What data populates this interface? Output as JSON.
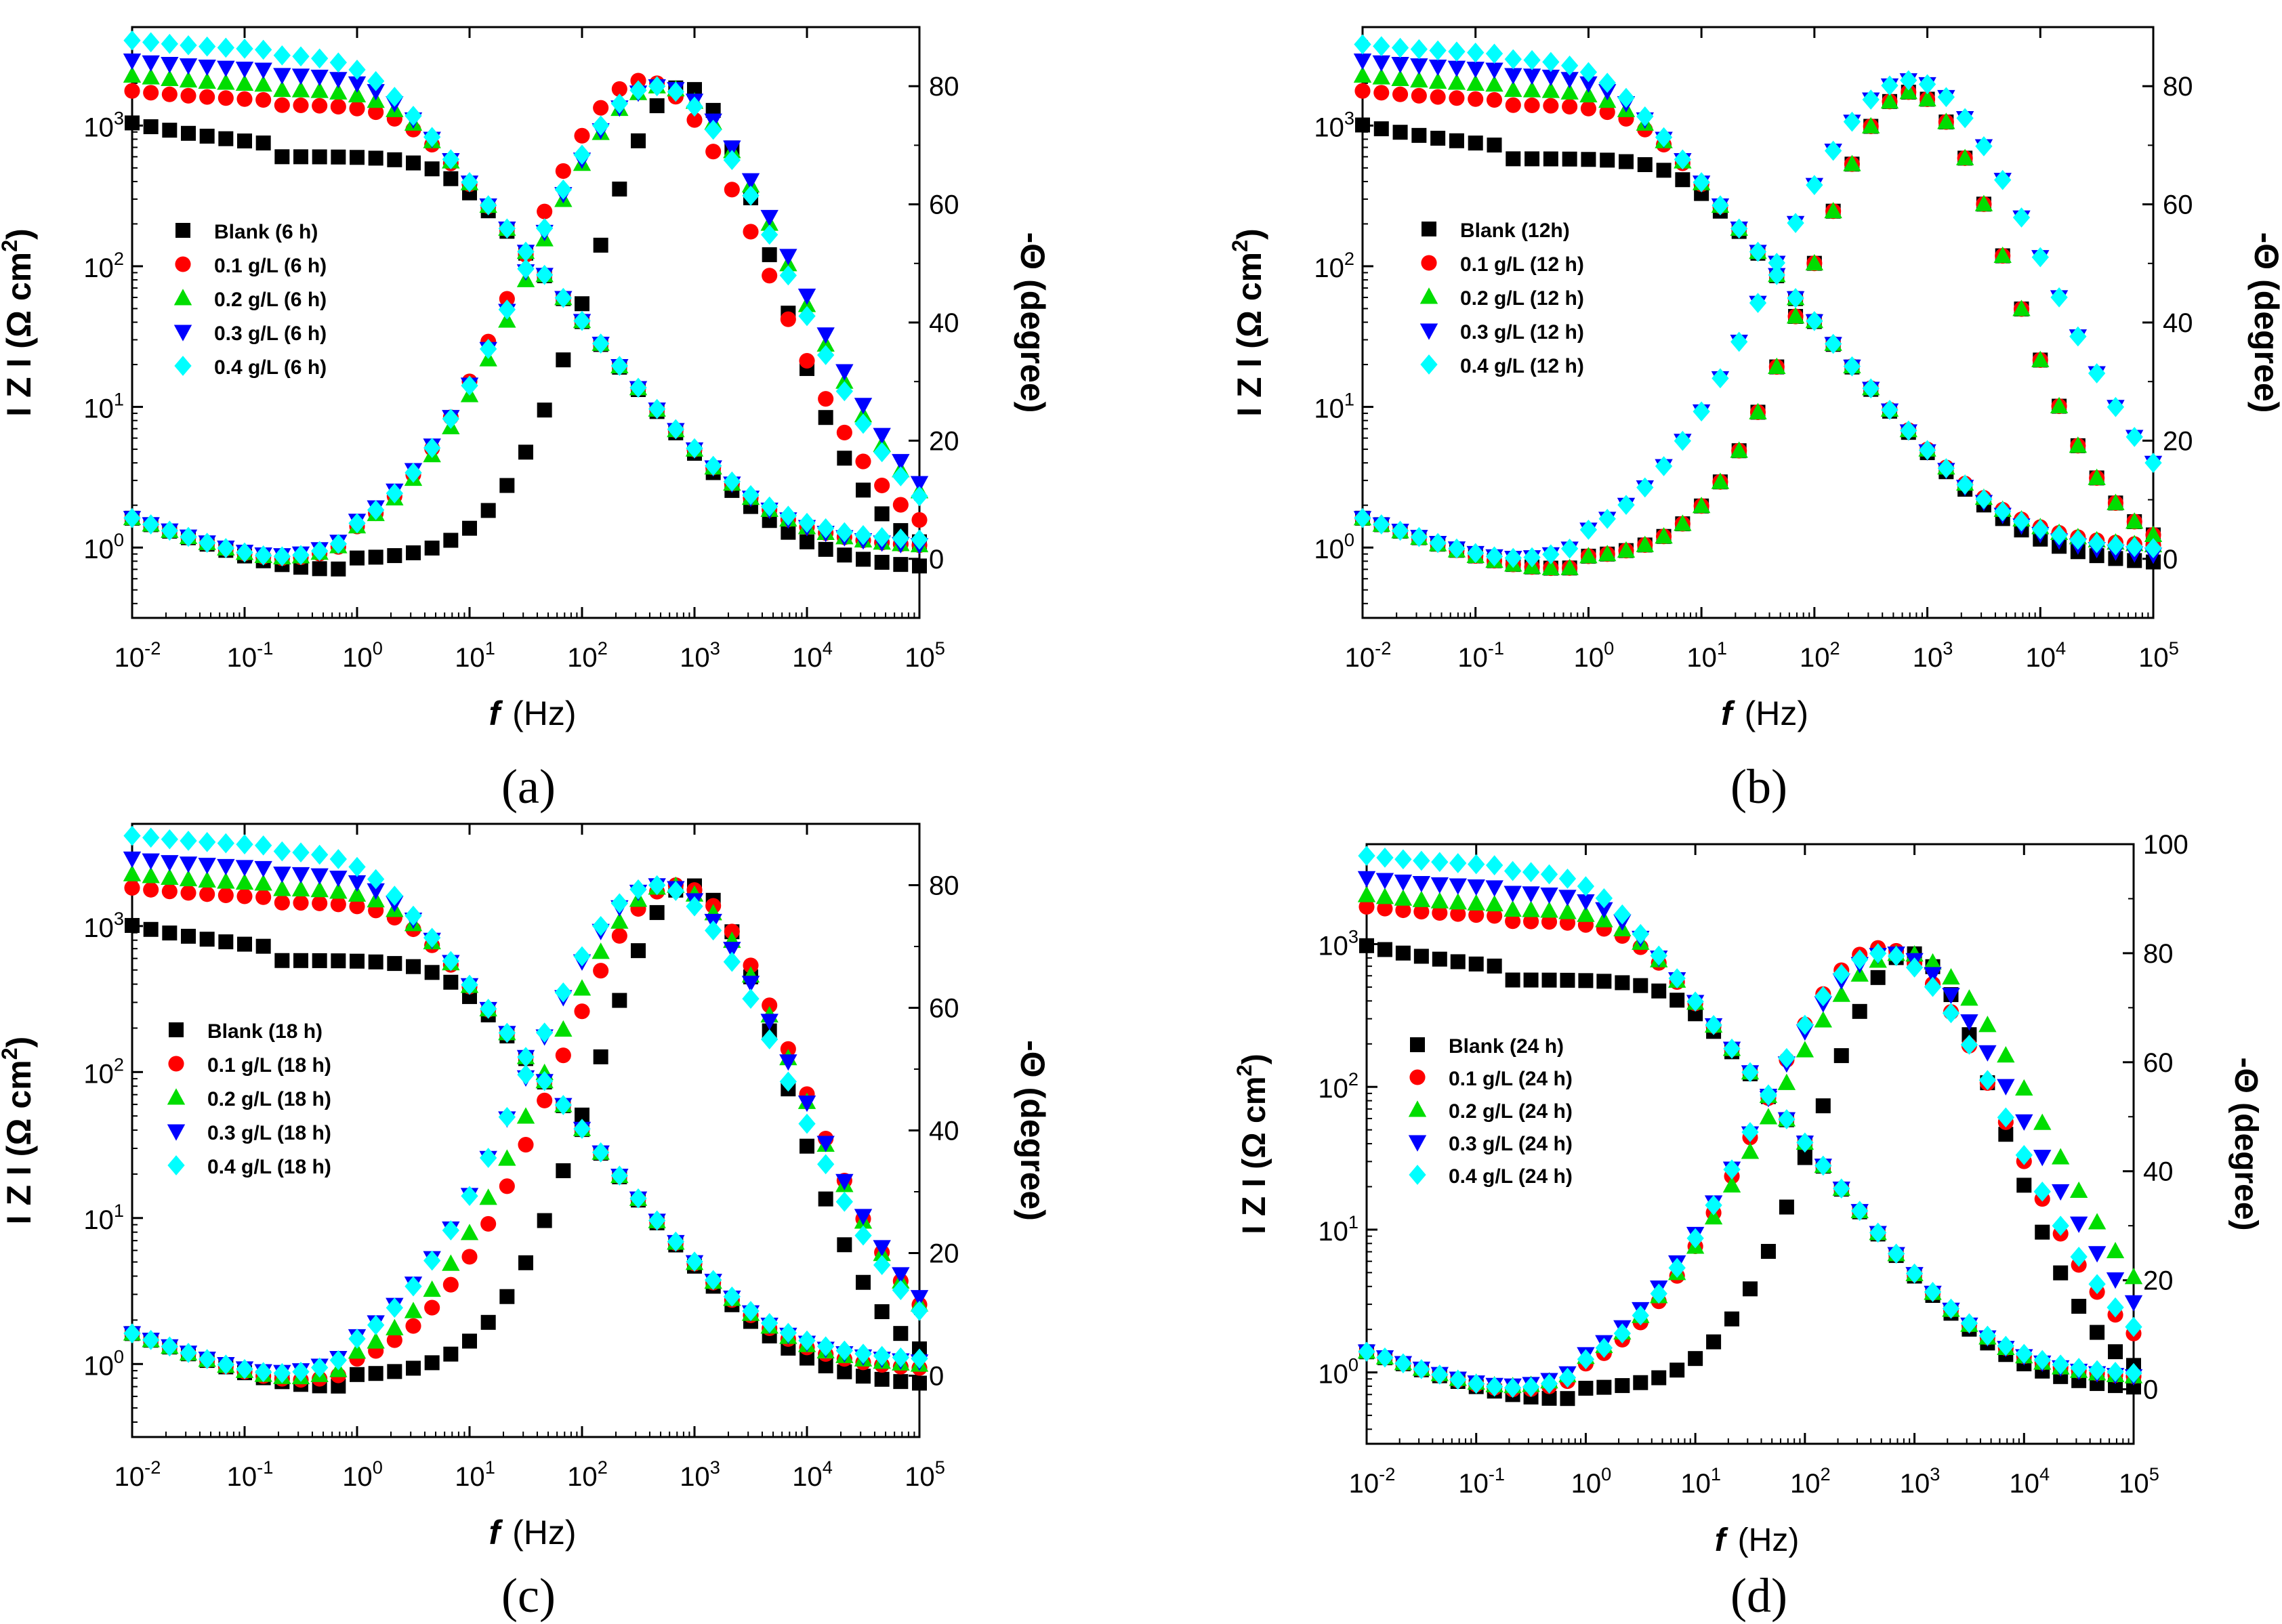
{
  "figure": {
    "x_axis_label_prefix": "f",
    "x_axis_label_unit": "(Hz)",
    "y_left_label_main": "I Z I (Ω cm",
    "y_left_label_sup": "2",
    "y_left_label_close": ")",
    "y_right_label": "-Θ (degree)"
  },
  "chart_data": [
    {
      "panel": "(a)",
      "type": "scatter",
      "xscale": "log",
      "xlim": [
        0.01,
        100000
      ],
      "x_ticks": [
        "10-2",
        "10-1",
        "100",
        "101",
        "102",
        "103",
        "104",
        "105"
      ],
      "xlabel": "f (Hz)",
      "ylabel_left": "I Z I (Ω cm2)",
      "ylim_left_log10": [
        -0.5,
        3.7
      ],
      "y_left_ticks": [
        "100",
        "101",
        "102",
        "103"
      ],
      "ylabel_right": "-Θ (degree)",
      "ylim_right": [
        -10,
        90
      ],
      "y_right_ticks": [
        "0",
        "20",
        "40",
        "60",
        "80"
      ],
      "legend": [
        "Blank   (6 h)",
        "0.1 g/L (6 h)",
        "0.2 g/L (6 h)",
        "0.3 g/L (6 h)",
        "0.4 g/L (6 h)"
      ],
      "series": [
        {
          "name": "Blank (6 h)",
          "Z_low": 600,
          "Z_high": 0.7,
          "ph_max": 80,
          "ph_fmax": 800,
          "ph_width": 1.15
        },
        {
          "name": "0.1 g/L (6 h)",
          "Z_low": 1400,
          "Z_high": 1.0,
          "ph_max": 81,
          "ph_fmax": 350,
          "ph_width": 1.55
        },
        {
          "name": "0.2 g/L (6 h)",
          "Z_low": 1800,
          "Z_high": 1.0,
          "ph_max": 80,
          "ph_fmax": 500,
          "ph_width": 1.65
        },
        {
          "name": "0.3 g/L (6 h)",
          "Z_low": 2300,
          "Z_high": 1.0,
          "ph_max": 80,
          "ph_fmax": 500,
          "ph_width": 1.7
        },
        {
          "name": "0.4 g/L (6 h)",
          "Z_low": 3200,
          "Z_high": 1.1,
          "ph_max": 80,
          "ph_fmax": 450,
          "ph_width": 1.65
        }
      ]
    },
    {
      "panel": "(b)",
      "type": "scatter",
      "xscale": "log",
      "xlim": [
        0.01,
        100000
      ],
      "x_ticks": [
        "10-2",
        "10-1",
        "100",
        "101",
        "102",
        "103",
        "104",
        "105"
      ],
      "xlabel": "f (Hz)",
      "ylabel_left": "I Z I (Ω cm2)",
      "ylim_left_log10": [
        -0.5,
        3.7
      ],
      "y_left_ticks": [
        "100",
        "101",
        "102",
        "103"
      ],
      "ylabel_right": "-Θ (degree)",
      "ylim_right": [
        -10,
        90
      ],
      "y_right_ticks": [
        "0",
        "20",
        "40",
        "60",
        "80"
      ],
      "legend": [
        "Blank   (12h)",
        "0.1 g/L (12 h)",
        "0.2 g/L (12 h)",
        "0.3 g/L (12 h)",
        "0.4 g/L (12 h)"
      ],
      "series": [
        {
          "name": "Blank (12h)",
          "Z_low": 580,
          "Z_high": 0.75,
          "ph_max": 79,
          "ph_fmax": 700,
          "ph_width": 1.25
        },
        {
          "name": "0.1 g/L (12 h)",
          "Z_low": 1400,
          "Z_high": 1.0,
          "ph_max": 79,
          "ph_fmax": 700,
          "ph_width": 1.25
        },
        {
          "name": "0.2 g/L (12 h)",
          "Z_low": 1800,
          "Z_high": 1.0,
          "ph_max": 79,
          "ph_fmax": 700,
          "ph_width": 1.25
        },
        {
          "name": "0.3 g/L (12 h)",
          "Z_low": 2300,
          "Z_high": 0.85,
          "ph_max": 81,
          "ph_fmax": 700,
          "ph_width": 1.7
        },
        {
          "name": "0.4 g/L (12 h)",
          "Z_low": 3000,
          "Z_high": 0.95,
          "ph_max": 81,
          "ph_fmax": 700,
          "ph_width": 1.7
        }
      ]
    },
    {
      "panel": "(c)",
      "type": "scatter",
      "xscale": "log",
      "xlim": [
        0.01,
        100000
      ],
      "x_ticks": [
        "10-2",
        "10-1",
        "100",
        "101",
        "102",
        "103",
        "104",
        "105"
      ],
      "xlabel": "f (Hz)",
      "ylabel_left": "I Z I (Ω cm2)",
      "ylim_left_log10": [
        -0.5,
        3.7
      ],
      "y_left_ticks": [
        "100",
        "101",
        "102",
        "103"
      ],
      "ylabel_right": "-Θ (degree)",
      "ylim_right": [
        -10,
        90
      ],
      "y_right_ticks": [
        "0",
        "20",
        "40",
        "60",
        "80"
      ],
      "legend": [
        "Blank    (18 h)",
        "0.1 g/L (18 h)",
        "0.2 g/L (18 h)",
        "0.3 g/L (18 h)",
        "0.4 g/L (18 h)"
      ],
      "series": [
        {
          "name": "Blank (18 h)",
          "Z_low": 580,
          "Z_high": 0.7,
          "ph_max": 80,
          "ph_fmax": 900,
          "ph_width": 1.2
        },
        {
          "name": "0.1 g/L (18 h)",
          "Z_low": 1450,
          "Z_high": 0.9,
          "ph_max": 80,
          "ph_fmax": 700,
          "ph_width": 1.55
        },
        {
          "name": "0.2 g/L (18 h)",
          "Z_low": 1800,
          "Z_high": 0.95,
          "ph_max": 80,
          "ph_fmax": 600,
          "ph_width": 1.6
        },
        {
          "name": "0.3 g/L (18 h)",
          "Z_low": 2300,
          "Z_high": 1.0,
          "ph_max": 80,
          "ph_fmax": 500,
          "ph_width": 1.7
        },
        {
          "name": "0.4 g/L (18 h)",
          "Z_low": 3300,
          "Z_high": 1.05,
          "ph_max": 80,
          "ph_fmax": 450,
          "ph_width": 1.65
        }
      ]
    },
    {
      "panel": "(d)",
      "type": "scatter",
      "xscale": "log",
      "xlim": [
        0.01,
        100000
      ],
      "x_ticks": [
        "10-2",
        "10-1",
        "100",
        "101",
        "102",
        "103",
        "104",
        "105"
      ],
      "xlabel": "f (Hz)",
      "ylabel_left": "I Z I (Ω cm2)",
      "ylim_left_log10": [
        -0.5,
        3.7
      ],
      "y_left_ticks": [
        "100",
        "101",
        "102",
        "103"
      ],
      "ylabel_right": "-Θ (degree)",
      "ylim_right": [
        -10,
        100
      ],
      "y_right_ticks": [
        "0",
        "20",
        "40",
        "60",
        "80",
        "100"
      ],
      "legend": [
        "Blank   (24 h)",
        "0.1 g/L (24 h)",
        "0.2 g/L (24 h)",
        "0.3 g/L (24 h)",
        "0.4 g/L (24 h)"
      ],
      "series": [
        {
          "name": "Blank (24 h)",
          "Z_low": 560,
          "Z_high": 0.75,
          "ph_max": 80,
          "ph_fmax": 900,
          "ph_width": 1.2
        },
        {
          "name": "0.1 g/L (24 h)",
          "Z_low": 1450,
          "Z_high": 0.9,
          "ph_max": 81,
          "ph_fmax": 500,
          "ph_width": 1.6
        },
        {
          "name": "0.2 g/L (24 h)",
          "Z_low": 1750,
          "Z_high": 0.9,
          "ph_max": 80,
          "ph_fmax": 800,
          "ph_width": 1.8
        },
        {
          "name": "0.3 g/L (24 h)",
          "Z_low": 2300,
          "Z_high": 0.9,
          "ph_max": 80,
          "ph_fmax": 600,
          "ph_width": 1.75
        },
        {
          "name": "0.4 g/L (24 h)",
          "Z_low": 3300,
          "Z_high": 0.95,
          "ph_max": 80,
          "ph_fmax": 500,
          "ph_width": 1.65
        }
      ]
    }
  ],
  "styles": {
    "colors": [
      "#000000",
      "#ff0000",
      "#00dd00",
      "#0000ff",
      "#00ffff"
    ],
    "markers": [
      "square",
      "circle",
      "triangle-up",
      "triangle-down",
      "diamond"
    ]
  }
}
